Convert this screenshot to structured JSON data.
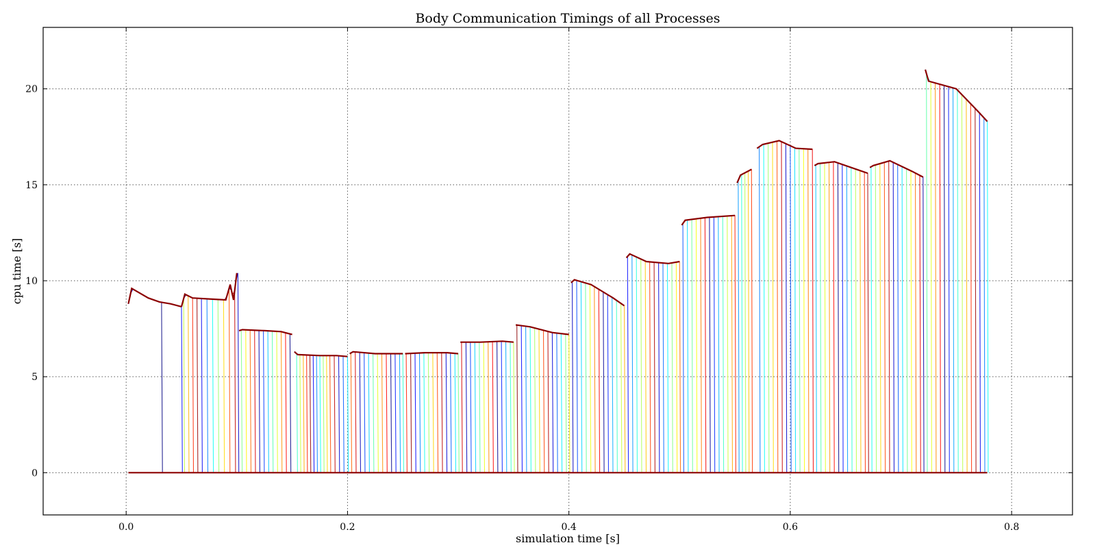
{
  "chart_data": {
    "type": "line",
    "title": "Body Communication Timings of all Processes",
    "xlabel": "simulation time [s]",
    "ylabel": "cpu time [s]",
    "xlim": [
      -0.075,
      0.855
    ],
    "ylim": [
      -2.2,
      23.2
    ],
    "xticks": [
      0.0,
      0.2,
      0.4,
      0.6,
      0.8
    ],
    "xtick_labels": [
      "0.0",
      "0.2",
      "0.4",
      "0.6",
      "0.8"
    ],
    "yticks": [
      0,
      5,
      10,
      15,
      20
    ],
    "ytick_labels": [
      "0",
      "5",
      "10",
      "15",
      "20"
    ],
    "grid": true,
    "colormap": "jet",
    "envelope_color": "#8b0000",
    "description_of_series": "many process series; each holds cpu time at a block level within its window, then drops to 0",
    "blocks": [
      {
        "x": [
          0.002,
          0.005,
          0.02,
          0.03,
          0.04,
          0.05
        ],
        "y": [
          8.8,
          9.6,
          9.1,
          8.9,
          8.8,
          8.65
        ],
        "drops": [
          0.032,
          0.05
        ]
      },
      {
        "x": [
          0.05,
          0.053,
          0.06,
          0.075,
          0.09,
          0.094,
          0.097,
          0.1
        ],
        "y": [
          8.65,
          9.3,
          9.1,
          9.05,
          9.0,
          9.8,
          9.0,
          10.4
        ],
        "drops": [
          0.052,
          0.056,
          0.06,
          0.064,
          0.068,
          0.073,
          0.078,
          0.083,
          0.088,
          0.093,
          0.098,
          0.101
        ]
      },
      {
        "x": [
          0.102,
          0.105,
          0.125,
          0.14,
          0.15
        ],
        "y": [
          7.4,
          7.45,
          7.4,
          7.35,
          7.2
        ],
        "drops": [
          0.104,
          0.108,
          0.112,
          0.116,
          0.12,
          0.124,
          0.128,
          0.132,
          0.136,
          0.14,
          0.144,
          0.148
        ]
      },
      {
        "x": [
          0.152,
          0.155,
          0.175,
          0.19,
          0.2
        ],
        "y": [
          6.3,
          6.15,
          6.1,
          6.1,
          6.05
        ],
        "drops": [
          0.154,
          0.157,
          0.16,
          0.163,
          0.166,
          0.169,
          0.172,
          0.175,
          0.178,
          0.181,
          0.184,
          0.188,
          0.192,
          0.196,
          0.2
        ]
      },
      {
        "x": [
          0.202,
          0.205,
          0.225,
          0.25
        ],
        "y": [
          6.2,
          6.3,
          6.2,
          6.2
        ],
        "drops": [
          0.203,
          0.207,
          0.211,
          0.215,
          0.219,
          0.223,
          0.227,
          0.231,
          0.235,
          0.239,
          0.243,
          0.247,
          0.25
        ]
      },
      {
        "x": [
          0.252,
          0.27,
          0.29,
          0.3
        ],
        "y": [
          6.2,
          6.25,
          6.25,
          6.2
        ],
        "drops": [
          0.253,
          0.257,
          0.261,
          0.265,
          0.269,
          0.273,
          0.277,
          0.281,
          0.285,
          0.289,
          0.293,
          0.297,
          0.3
        ]
      },
      {
        "x": [
          0.302,
          0.32,
          0.34,
          0.35
        ],
        "y": [
          6.8,
          6.8,
          6.85,
          6.8
        ],
        "drops": [
          0.303,
          0.307,
          0.311,
          0.315,
          0.319,
          0.323,
          0.327,
          0.331,
          0.335,
          0.339,
          0.343,
          0.347,
          0.35
        ]
      },
      {
        "x": [
          0.352,
          0.365,
          0.385,
          0.4
        ],
        "y": [
          7.7,
          7.6,
          7.3,
          7.2
        ],
        "drops": [
          0.353,
          0.357,
          0.361,
          0.365,
          0.369,
          0.373,
          0.377,
          0.381,
          0.385,
          0.389,
          0.393,
          0.397,
          0.4
        ]
      },
      {
        "x": [
          0.402,
          0.405,
          0.42,
          0.44,
          0.45
        ],
        "y": [
          9.9,
          10.05,
          9.8,
          9.1,
          8.7
        ],
        "drops": [
          0.403,
          0.407,
          0.411,
          0.415,
          0.419,
          0.423,
          0.427,
          0.431,
          0.435,
          0.439,
          0.443,
          0.447,
          0.45
        ]
      },
      {
        "x": [
          0.452,
          0.455,
          0.47,
          0.49,
          0.5
        ],
        "y": [
          11.2,
          11.4,
          11.0,
          10.9,
          11.0
        ],
        "drops": [
          0.453,
          0.457,
          0.461,
          0.465,
          0.469,
          0.473,
          0.477,
          0.481,
          0.485,
          0.489,
          0.493,
          0.497,
          0.5
        ]
      },
      {
        "x": [
          0.502,
          0.505,
          0.525,
          0.55
        ],
        "y": [
          12.9,
          13.15,
          13.3,
          13.4
        ],
        "drops": [
          0.503,
          0.507,
          0.511,
          0.515,
          0.519,
          0.523,
          0.527,
          0.531,
          0.535,
          0.539,
          0.543,
          0.547,
          0.55
        ]
      },
      {
        "x": [
          0.552,
          0.555,
          0.565
        ],
        "y": [
          15.1,
          15.5,
          15.8
        ],
        "drops": [
          0.553,
          0.556,
          0.559,
          0.562,
          0.565
        ]
      },
      {
        "x": [
          0.57,
          0.575,
          0.59,
          0.605,
          0.62
        ],
        "y": [
          16.9,
          17.1,
          17.3,
          16.9,
          16.85
        ],
        "drops": [
          0.572,
          0.576,
          0.58,
          0.584,
          0.588,
          0.592,
          0.596,
          0.6,
          0.604,
          0.608,
          0.612,
          0.616,
          0.62
        ]
      },
      {
        "x": [
          0.622,
          0.625,
          0.64,
          0.66,
          0.67
        ],
        "y": [
          16.0,
          16.1,
          16.2,
          15.8,
          15.6
        ],
        "drops": [
          0.623,
          0.627,
          0.631,
          0.635,
          0.639,
          0.643,
          0.647,
          0.651,
          0.655,
          0.659,
          0.663,
          0.667,
          0.67
        ]
      },
      {
        "x": [
          0.672,
          0.675,
          0.69,
          0.71,
          0.72
        ],
        "y": [
          15.9,
          16.0,
          16.25,
          15.7,
          15.4
        ],
        "drops": [
          0.673,
          0.677,
          0.681,
          0.685,
          0.689,
          0.693,
          0.697,
          0.701,
          0.705,
          0.709,
          0.713,
          0.717,
          0.72
        ]
      },
      {
        "x": [
          0.722,
          0.725,
          0.75,
          0.77,
          0.778
        ],
        "y": [
          21.0,
          20.4,
          20.0,
          18.8,
          18.3
        ],
        "drops": [
          0.723,
          0.727,
          0.731,
          0.735,
          0.739,
          0.743,
          0.747,
          0.751,
          0.755,
          0.759,
          0.763,
          0.767,
          0.771,
          0.775,
          0.778
        ]
      }
    ],
    "baseline": {
      "x": [
        0.002,
        0.778
      ],
      "y": 0
    }
  }
}
